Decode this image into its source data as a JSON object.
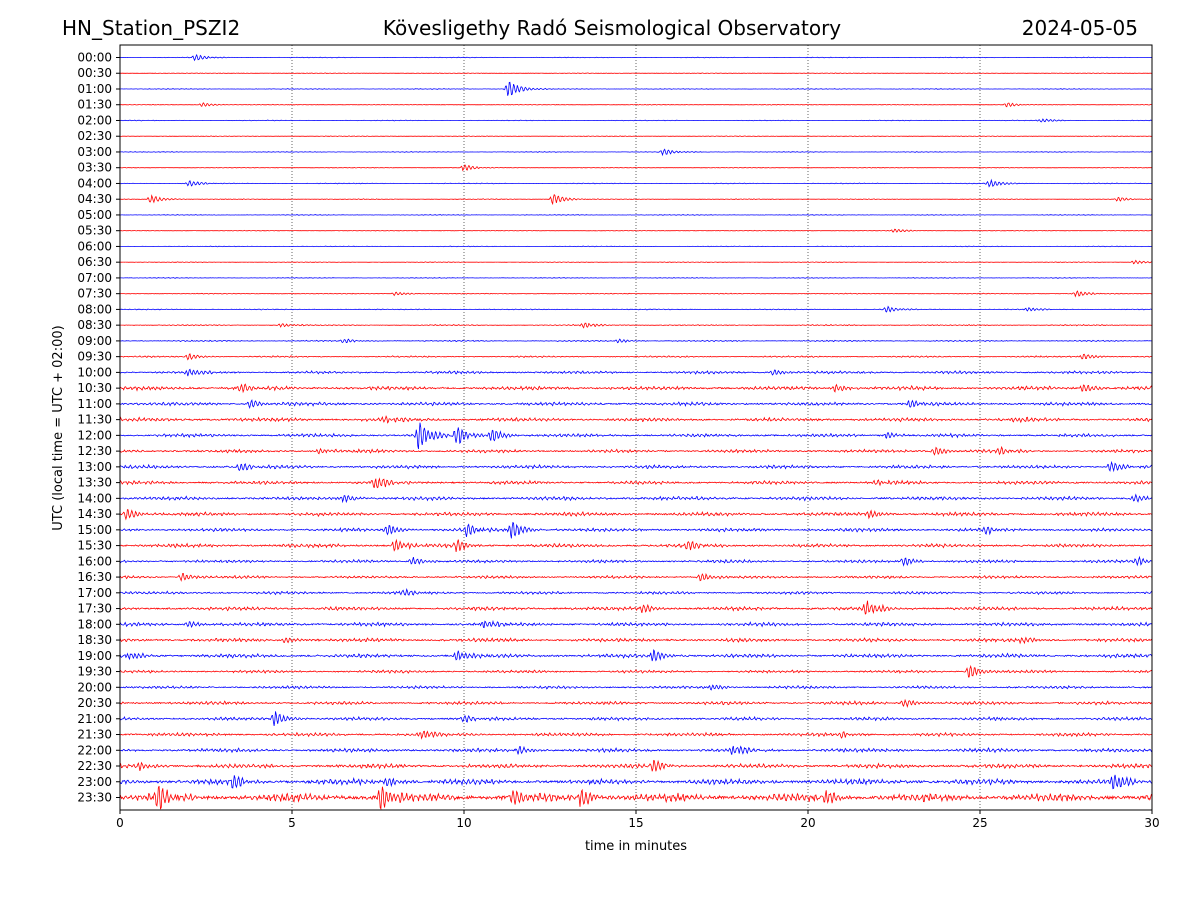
{
  "chart_data": {
    "type": "line",
    "subtype": "helicorder",
    "station": "HN_Station_PSZI2",
    "title": "Kövesligethy Radó Seismological Observatory",
    "date": "2024-05-05",
    "xlabel": "time in minutes",
    "ylabel": "UTC (local time = UTC + 02:00)",
    "xlim": [
      0,
      30
    ],
    "xticks": [
      "0",
      "5",
      "10",
      "15",
      "20",
      "25",
      "30"
    ],
    "grid": "vertical dotted lines at 5, 10, 15, 20, 25 minutes",
    "trace_colors": [
      "#0000ff",
      "#ff0000"
    ],
    "rows": [
      {
        "label": "00:00",
        "noise": 0.3,
        "events": [
          {
            "t": 2.2,
            "a": 3
          }
        ]
      },
      {
        "label": "00:30",
        "noise": 0.3,
        "events": []
      },
      {
        "label": "01:00",
        "noise": 0.3,
        "events": [
          {
            "t": 11.3,
            "a": 8
          }
        ]
      },
      {
        "label": "01:30",
        "noise": 0.3,
        "events": [
          {
            "t": 2.4,
            "a": 2
          },
          {
            "t": 25.8,
            "a": 2
          }
        ]
      },
      {
        "label": "02:00",
        "noise": 0.3,
        "events": [
          {
            "t": 26.8,
            "a": 2
          }
        ]
      },
      {
        "label": "02:30",
        "noise": 0.3,
        "events": []
      },
      {
        "label": "03:00",
        "noise": 0.3,
        "events": [
          {
            "t": 15.8,
            "a": 3
          }
        ]
      },
      {
        "label": "03:30",
        "noise": 0.3,
        "events": [
          {
            "t": 10.0,
            "a": 3
          }
        ]
      },
      {
        "label": "04:00",
        "noise": 0.35,
        "events": [
          {
            "t": 2.0,
            "a": 3
          },
          {
            "t": 25.3,
            "a": 4
          }
        ]
      },
      {
        "label": "04:30",
        "noise": 0.35,
        "events": [
          {
            "t": 0.9,
            "a": 4
          },
          {
            "t": 12.6,
            "a": 5
          },
          {
            "t": 29.0,
            "a": 2
          }
        ]
      },
      {
        "label": "05:00",
        "noise": 0.3,
        "events": []
      },
      {
        "label": "05:30",
        "noise": 0.3,
        "events": [
          {
            "t": 22.5,
            "a": 2
          }
        ]
      },
      {
        "label": "06:00",
        "noise": 0.3,
        "events": []
      },
      {
        "label": "06:30",
        "noise": 0.3,
        "events": [
          {
            "t": 29.5,
            "a": 2
          }
        ]
      },
      {
        "label": "07:00",
        "noise": 0.3,
        "events": []
      },
      {
        "label": "07:30",
        "noise": 0.4,
        "events": [
          {
            "t": 8.0,
            "a": 2
          },
          {
            "t": 27.8,
            "a": 3
          }
        ]
      },
      {
        "label": "08:00",
        "noise": 0.4,
        "events": [
          {
            "t": 22.3,
            "a": 3
          },
          {
            "t": 26.4,
            "a": 2
          }
        ]
      },
      {
        "label": "08:30",
        "noise": 0.5,
        "events": [
          {
            "t": 13.5,
            "a": 3
          },
          {
            "t": 4.7,
            "a": 2
          }
        ]
      },
      {
        "label": "09:00",
        "noise": 0.6,
        "events": [
          {
            "t": 6.5,
            "a": 2
          },
          {
            "t": 14.5,
            "a": 2
          }
        ]
      },
      {
        "label": "09:30",
        "noise": 0.7,
        "events": [
          {
            "t": 2.0,
            "a": 3
          },
          {
            "t": 28.0,
            "a": 3
          }
        ]
      },
      {
        "label": "10:00",
        "noise": 1.3,
        "events": [
          {
            "t": 2.0,
            "a": 4
          },
          {
            "t": 19.0,
            "a": 3
          }
        ]
      },
      {
        "label": "10:30",
        "noise": 1.8,
        "events": [
          {
            "t": 3.5,
            "a": 4
          },
          {
            "t": 20.8,
            "a": 4
          },
          {
            "t": 28.0,
            "a": 4
          }
        ]
      },
      {
        "label": "11:00",
        "noise": 1.6,
        "events": [
          {
            "t": 3.8,
            "a": 4
          },
          {
            "t": 23.0,
            "a": 4
          }
        ]
      },
      {
        "label": "11:30",
        "noise": 1.7,
        "events": [
          {
            "t": 7.7,
            "a": 4
          },
          {
            "t": 26.0,
            "a": 3
          }
        ]
      },
      {
        "label": "12:00",
        "noise": 1.5,
        "events": [
          {
            "t": 8.7,
            "a": 14
          },
          {
            "t": 9.8,
            "a": 9
          },
          {
            "t": 10.8,
            "a": 7
          },
          {
            "t": 22.3,
            "a": 3
          }
        ]
      },
      {
        "label": "12:30",
        "noise": 1.5,
        "events": [
          {
            "t": 5.8,
            "a": 3
          },
          {
            "t": 23.7,
            "a": 4
          },
          {
            "t": 25.6,
            "a": 4
          }
        ]
      },
      {
        "label": "13:00",
        "noise": 1.6,
        "events": [
          {
            "t": 3.5,
            "a": 4
          },
          {
            "t": 28.8,
            "a": 5
          }
        ]
      },
      {
        "label": "13:30",
        "noise": 1.6,
        "events": [
          {
            "t": 7.4,
            "a": 7
          },
          {
            "t": 22.0,
            "a": 3
          }
        ]
      },
      {
        "label": "14:00",
        "noise": 1.7,
        "events": [
          {
            "t": 6.5,
            "a": 4
          },
          {
            "t": 29.5,
            "a": 4
          }
        ]
      },
      {
        "label": "14:30",
        "noise": 1.7,
        "events": [
          {
            "t": 0.2,
            "a": 5
          },
          {
            "t": 21.8,
            "a": 4
          }
        ]
      },
      {
        "label": "15:00",
        "noise": 1.6,
        "events": [
          {
            "t": 7.8,
            "a": 5
          },
          {
            "t": 10.1,
            "a": 6
          },
          {
            "t": 11.4,
            "a": 9
          },
          {
            "t": 25.2,
            "a": 4
          }
        ]
      },
      {
        "label": "15:30",
        "noise": 1.7,
        "events": [
          {
            "t": 8.0,
            "a": 6
          },
          {
            "t": 9.8,
            "a": 6
          },
          {
            "t": 16.5,
            "a": 4
          }
        ]
      },
      {
        "label": "16:00",
        "noise": 1.4,
        "events": [
          {
            "t": 8.5,
            "a": 4
          },
          {
            "t": 22.8,
            "a": 4
          },
          {
            "t": 29.6,
            "a": 4
          }
        ]
      },
      {
        "label": "16:30",
        "noise": 1.3,
        "events": [
          {
            "t": 1.8,
            "a": 4
          },
          {
            "t": 16.9,
            "a": 4
          }
        ]
      },
      {
        "label": "17:00",
        "noise": 1.3,
        "events": [
          {
            "t": 8.2,
            "a": 3
          }
        ]
      },
      {
        "label": "17:30",
        "noise": 1.7,
        "events": [
          {
            "t": 21.7,
            "a": 8
          },
          {
            "t": 15.2,
            "a": 4
          }
        ]
      },
      {
        "label": "18:00",
        "noise": 1.7,
        "events": [
          {
            "t": 10.6,
            "a": 4
          },
          {
            "t": 2.0,
            "a": 3
          }
        ]
      },
      {
        "label": "18:30",
        "noise": 1.7,
        "events": [
          {
            "t": 4.8,
            "a": 3
          },
          {
            "t": 26.2,
            "a": 3
          }
        ]
      },
      {
        "label": "19:00",
        "noise": 1.8,
        "events": [
          {
            "t": 15.5,
            "a": 6
          },
          {
            "t": 9.8,
            "a": 5
          },
          {
            "t": 0.3,
            "a": 4
          }
        ]
      },
      {
        "label": "19:30",
        "noise": 1.3,
        "events": [
          {
            "t": 24.7,
            "a": 6
          }
        ]
      },
      {
        "label": "20:00",
        "noise": 1.3,
        "events": [
          {
            "t": 17.2,
            "a": 3
          }
        ]
      },
      {
        "label": "20:30",
        "noise": 1.5,
        "events": [
          {
            "t": 22.8,
            "a": 4
          }
        ]
      },
      {
        "label": "21:00",
        "noise": 1.5,
        "events": [
          {
            "t": 4.5,
            "a": 7
          },
          {
            "t": 10.0,
            "a": 3
          }
        ]
      },
      {
        "label": "21:30",
        "noise": 1.6,
        "events": [
          {
            "t": 8.8,
            "a": 5
          },
          {
            "t": 21.0,
            "a": 3
          }
        ]
      },
      {
        "label": "22:00",
        "noise": 1.7,
        "events": [
          {
            "t": 17.8,
            "a": 6
          },
          {
            "t": 11.6,
            "a": 4
          }
        ]
      },
      {
        "label": "22:30",
        "noise": 2.0,
        "events": [
          {
            "t": 15.5,
            "a": 6
          },
          {
            "t": 0.6,
            "a": 4
          }
        ]
      },
      {
        "label": "23:00",
        "noise": 2.6,
        "events": [
          {
            "t": 3.3,
            "a": 6
          },
          {
            "t": 28.9,
            "a": 9
          },
          {
            "t": 7.8,
            "a": 5
          }
        ]
      },
      {
        "label": "23:30",
        "noise": 3.8,
        "events": [
          {
            "t": 1.1,
            "a": 11
          },
          {
            "t": 7.6,
            "a": 12
          },
          {
            "t": 13.4,
            "a": 9
          },
          {
            "t": 11.4,
            "a": 7
          },
          {
            "t": 20.5,
            "a": 7
          }
        ]
      }
    ]
  }
}
